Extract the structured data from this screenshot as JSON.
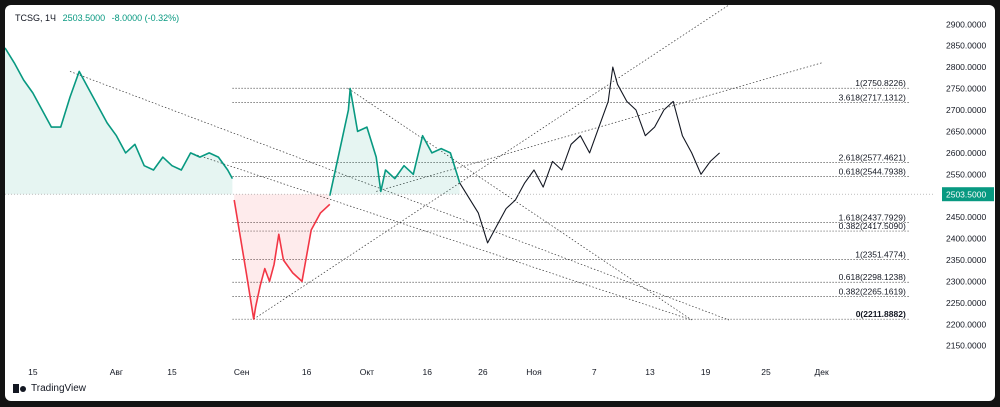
{
  "header": {
    "symbol": "TCSG",
    "interval": "1Ч",
    "price": "2503.5000",
    "change": "-8.0000 (-0.32%)"
  },
  "branding": {
    "logo_text": "TradingView"
  },
  "colors": {
    "up": "#089981",
    "down": "#f23645",
    "projection": "#131722",
    "price_label_bg": "#089981"
  },
  "chart_data": {
    "type": "line",
    "ylim": [
      2140,
      2945
    ],
    "y_ticks": [
      "2150.0000",
      "2200.0000",
      "2250.0000",
      "2300.0000",
      "2350.0000",
      "2400.0000",
      "2450.0000",
      "2500.0000",
      "2550.0000",
      "2600.0000",
      "2650.0000",
      "2700.0000",
      "2750.0000",
      "2800.0000",
      "2850.0000",
      "2900.0000"
    ],
    "x_ticks": [
      "15",
      "Авг",
      "15",
      "Сен",
      "16",
      "Окт",
      "16",
      "26",
      "Ноя",
      "7",
      "13",
      "19",
      "25",
      "Дек"
    ],
    "current_price": {
      "value": 2503.5,
      "label": "2503.5000"
    },
    "fib_levels": [
      {
        "label": "1(2750.8226)",
        "value": 2750.8226
      },
      {
        "label": "3.618(2717.1312)",
        "value": 2717.1312
      },
      {
        "label": "2.618(2577.4621)",
        "value": 2577.4621
      },
      {
        "label": "0.618(2544.7938)",
        "value": 2544.7938
      },
      {
        "label": "1.618(2437.7929)",
        "value": 2437.7929
      },
      {
        "label": "0.382(2417.5090)",
        "value": 2417.509
      },
      {
        "label": "1(2351.4774)",
        "value": 2351.4774
      },
      {
        "label": "0.618(2298.1238)",
        "value": 2298.1238
      },
      {
        "label": "0.382(2265.1619)",
        "value": 2265.1619
      },
      {
        "label": "0(2211.8882)",
        "value": 2211.8882
      }
    ],
    "series": [
      {
        "name": "",
        "segment": "above",
        "x": [
          0,
          0.01,
          0.02,
          0.03,
          0.04,
          0.05,
          0.06,
          0.07,
          0.08,
          0.09,
          0.1,
          0.11,
          0.12,
          0.13,
          0.14,
          0.15,
          0.16,
          0.17,
          0.18,
          0.19,
          0.2,
          0.21,
          0.22,
          0.23,
          0.24,
          0.245
        ],
        "values": [
          2845,
          2810,
          2770,
          2740,
          2700,
          2660,
          2660,
          2730,
          2790,
          2750,
          2710,
          2670,
          2640,
          2600,
          2620,
          2570,
          2560,
          2590,
          2570,
          2560,
          2600,
          2590,
          2600,
          2590,
          2560,
          2540
        ]
      },
      {
        "name": "",
        "segment": "below",
        "x": [
          0.247,
          0.26,
          0.268,
          0.27,
          0.275,
          0.28,
          0.285,
          0.29,
          0.295,
          0.3,
          0.31,
          0.32,
          0.33,
          0.34,
          0.35
        ],
        "values": [
          2490,
          2320,
          2212,
          2240,
          2290,
          2330,
          2300,
          2340,
          2410,
          2350,
          2320,
          2300,
          2420,
          2460,
          2480
        ]
      },
      {
        "name": "",
        "segment": "above",
        "x": [
          0.35,
          0.36,
          0.37,
          0.372,
          0.38,
          0.39,
          0.4,
          0.405,
          0.41,
          0.42,
          0.43,
          0.44,
          0.45,
          0.46,
          0.47,
          0.48,
          0.49
        ],
        "values": [
          2500,
          2600,
          2700,
          2750,
          2650,
          2660,
          2590,
          2510,
          2560,
          2540,
          2570,
          2550,
          2640,
          2600,
          2610,
          2600,
          2530
        ]
      },
      {
        "name": "",
        "segment": "projection",
        "x": [
          0.49,
          0.51,
          0.52,
          0.53,
          0.54,
          0.55,
          0.56,
          0.57,
          0.58,
          0.59,
          0.6,
          0.61,
          0.62,
          0.63,
          0.64,
          0.65,
          0.655,
          0.66,
          0.67,
          0.68,
          0.69,
          0.7,
          0.71,
          0.72,
          0.73,
          0.74,
          0.75,
          0.76,
          0.77
        ],
        "values": [
          2530,
          2460,
          2390,
          2430,
          2470,
          2490,
          2530,
          2560,
          2520,
          2580,
          2560,
          2620,
          2640,
          2600,
          2660,
          2720,
          2800,
          2760,
          2720,
          2700,
          2640,
          2660,
          2700,
          2720,
          2640,
          2600,
          2550,
          2580,
          2600
        ]
      }
    ]
  }
}
